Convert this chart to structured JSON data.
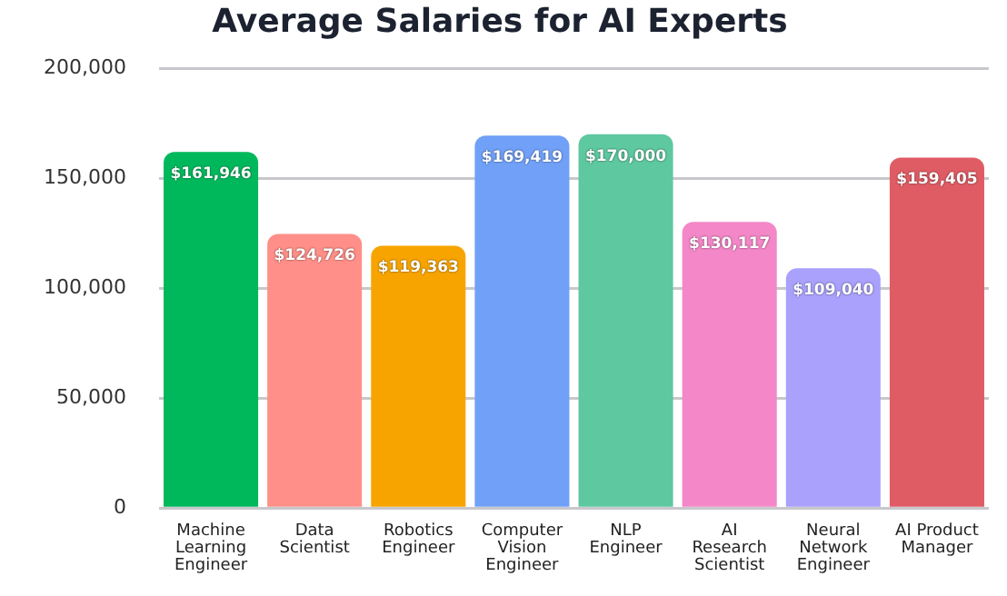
{
  "chart_data": {
    "type": "bar",
    "title": "Average Salaries for AI Experts",
    "categories": [
      "Machine Learning Engineer",
      "Data Scientist",
      "Robotics Engineer",
      "Computer Vision Engineer",
      "NLP Engineer",
      "AI Research Scientist",
      "Neural Network Engineer",
      "AI Product Manager"
    ],
    "values": [
      161946,
      124726,
      119363,
      169419,
      170000,
      130117,
      109040,
      159405
    ],
    "colors": [
      "#00b85c",
      "#ff8f88",
      "#f7a400",
      "#70a0f7",
      "#5ec8a0",
      "#f387c8",
      "#a9a1fc",
      "#e05c64"
    ],
    "value_labels": [
      "$161,946",
      "$124,726",
      "$119,363",
      "$169,419",
      "$170,000",
      "$130,117",
      "$109,040",
      "$159,405"
    ],
    "ylim": [
      0,
      200000
    ],
    "yticks": [
      0,
      {
        "value": 50000,
        "label": "50,000"
      },
      {
        "value": 100000,
        "label": "100,000"
      },
      {
        "value": 150000,
        "label": "150,000"
      },
      {
        "value": 200000,
        "label": "200,000"
      }
    ],
    "grid": "y",
    "legend": false
  }
}
